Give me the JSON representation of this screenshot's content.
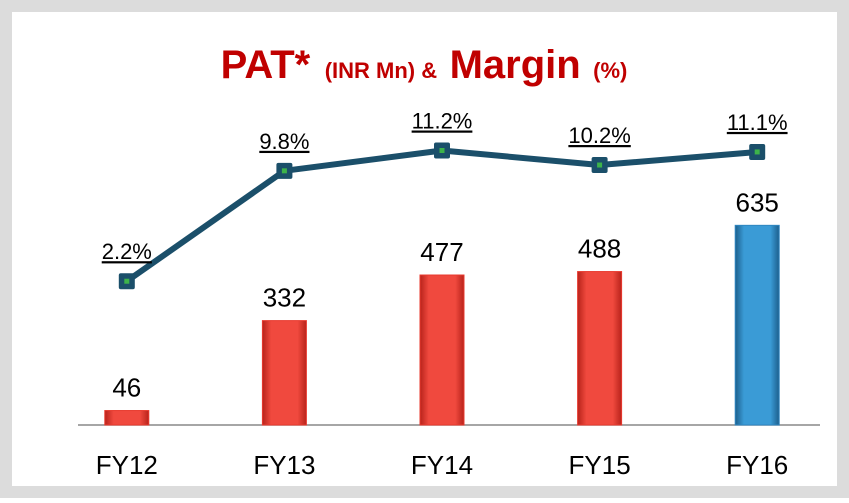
{
  "chart_data": {
    "type": "bar_line",
    "title_parts": [
      "PAT*",
      "(INR Mn) &",
      "Margin",
      "(%)"
    ],
    "categories": [
      "FY12",
      "FY13",
      "FY14",
      "FY15",
      "FY16"
    ],
    "ylim": [
      0,
      970
    ],
    "y2lim": [
      -7.7,
      13.3
    ],
    "series": [
      {
        "type": "bar",
        "values": [
          46,
          332,
          477,
          488,
          635
        ],
        "colors": [
          "#e8392e",
          "#e8392e",
          "#e8392e",
          "#e8392e",
          "#2e86c1"
        ]
      },
      {
        "type": "line",
        "axis": "y2",
        "color": "#1b4f6a",
        "marker_color": "#3db34a",
        "values": [
          2.2,
          9.8,
          11.2,
          10.2,
          11.1
        ],
        "value_labels": [
          "2.2%",
          "9.8%",
          "11.2%",
          "10.2%",
          "11.1%"
        ]
      }
    ]
  }
}
